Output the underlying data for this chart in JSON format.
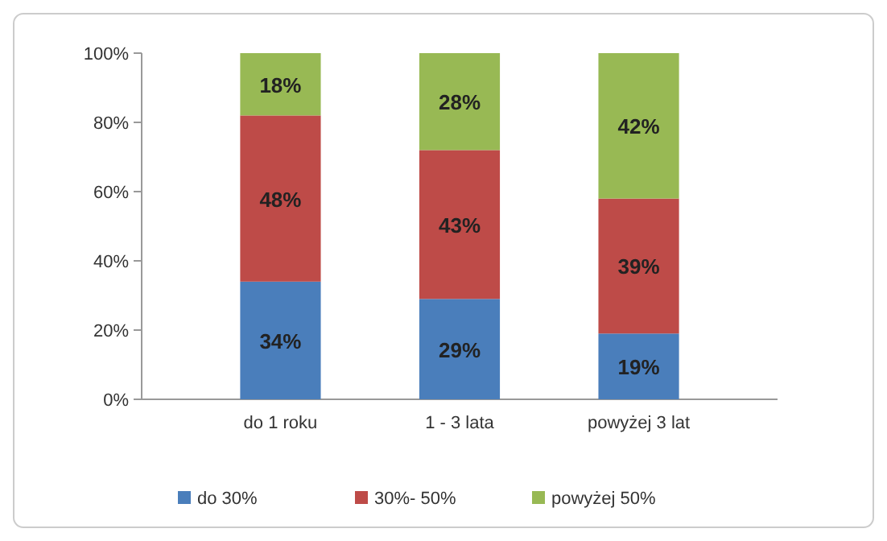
{
  "chart_data": {
    "type": "bar",
    "stacked": true,
    "categories": [
      "do 1 roku",
      "1 - 3 lata",
      "powyżej 3 lat"
    ],
    "series": [
      {
        "name": "do 30%",
        "color": "#4a7ebb",
        "values": [
          34,
          29,
          19
        ],
        "value_labels": [
          "34%",
          "29%",
          "19%"
        ]
      },
      {
        "name": "30%- 50%",
        "color": "#be4b48",
        "values": [
          48,
          43,
          39
        ],
        "value_labels": [
          "48%",
          "43%",
          "39%"
        ]
      },
      {
        "name": "powyżej 50%",
        "color": "#98b954",
        "values": [
          18,
          28,
          42
        ],
        "value_labels": [
          "18%",
          "28%",
          "42%"
        ]
      }
    ],
    "ylim": [
      0,
      100
    ],
    "yticks": [
      {
        "value": 0,
        "label": "0%"
      },
      {
        "value": 20,
        "label": "20%"
      },
      {
        "value": 40,
        "label": "40%"
      },
      {
        "value": 60,
        "label": "60%"
      },
      {
        "value": 80,
        "label": "80%"
      },
      {
        "value": 100,
        "label": "100%"
      }
    ],
    "grid": false,
    "legend": "bottom"
  }
}
